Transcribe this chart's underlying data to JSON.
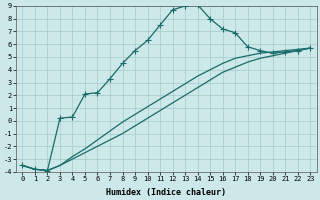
{
  "xlabel": "Humidex (Indice chaleur)",
  "xlim": [
    -0.5,
    23.5
  ],
  "ylim": [
    -4,
    9
  ],
  "yticks": [
    -4,
    -3,
    -2,
    -1,
    0,
    1,
    2,
    3,
    4,
    5,
    6,
    7,
    8,
    9
  ],
  "xticks": [
    0,
    1,
    2,
    3,
    4,
    5,
    6,
    7,
    8,
    9,
    10,
    11,
    12,
    13,
    14,
    15,
    16,
    17,
    18,
    19,
    20,
    21,
    22,
    23
  ],
  "bg_color": "#cce8e8",
  "grid_color": "#aacece",
  "line_color": "#1a6b6b",
  "line1_x": [
    0,
    1,
    2,
    3,
    4,
    5,
    6,
    7,
    8,
    9,
    10,
    11,
    12,
    13,
    14,
    15,
    16,
    17,
    18,
    19,
    20,
    21,
    22,
    23
  ],
  "line1_y": [
    -3.5,
    -3.8,
    -3.9,
    0.2,
    0.3,
    2.1,
    2.2,
    3.3,
    4.5,
    5.5,
    6.3,
    7.5,
    8.7,
    9.0,
    9.1,
    8.0,
    7.2,
    6.9,
    5.8,
    5.5,
    5.3,
    5.4,
    5.5,
    5.7
  ],
  "line2_x": [
    0,
    1,
    2,
    3,
    4,
    5,
    6,
    7,
    8,
    9,
    10,
    11,
    12,
    13,
    14,
    15,
    16,
    17,
    18,
    19,
    20,
    21,
    22,
    23
  ],
  "line2_y": [
    -3.5,
    -3.8,
    -3.9,
    -3.5,
    -2.8,
    -2.2,
    -1.5,
    -0.8,
    -0.1,
    0.5,
    1.1,
    1.7,
    2.3,
    2.9,
    3.5,
    4.0,
    4.5,
    4.9,
    5.1,
    5.3,
    5.4,
    5.5,
    5.6,
    5.7
  ],
  "line3_x": [
    0,
    1,
    2,
    3,
    4,
    5,
    6,
    7,
    8,
    9,
    10,
    11,
    12,
    13,
    14,
    15,
    16,
    17,
    18,
    19,
    20,
    21,
    22,
    23
  ],
  "line3_y": [
    -3.5,
    -3.8,
    -3.9,
    -3.5,
    -3.0,
    -2.5,
    -2.0,
    -1.5,
    -1.0,
    -0.4,
    0.2,
    0.8,
    1.4,
    2.0,
    2.6,
    3.2,
    3.8,
    4.2,
    4.6,
    4.9,
    5.1,
    5.3,
    5.5,
    5.7
  ]
}
